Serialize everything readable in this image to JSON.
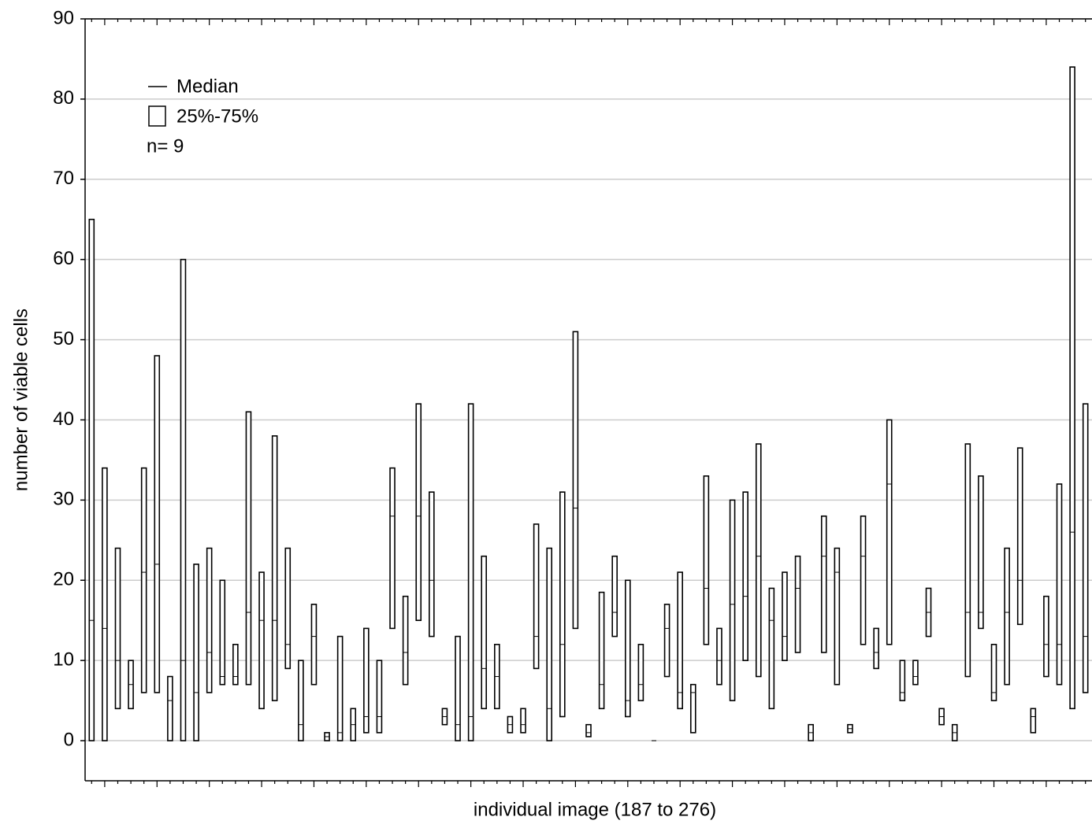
{
  "chart_data": {
    "type": "box",
    "y_label": "number of viable cells",
    "x_label": "individual image (187 to 276)",
    "legend": {
      "median": "Median",
      "box": "25%-75%",
      "n": "n= 9"
    },
    "categories": [
      null,
      null,
      null,
      null,
      null,
      null,
      null,
      null,
      null,
      null,
      null,
      null,
      null,
      null,
      null,
      null,
      null,
      null,
      null,
      null,
      null,
      null,
      null,
      null,
      null,
      null,
      null,
      null,
      null,
      null,
      null,
      null,
      null,
      null,
      null,
      null,
      null,
      null,
      null,
      null,
      null,
      null,
      null,
      null,
      null,
      null,
      null,
      null,
      null,
      null,
      null,
      null,
      null,
      null,
      null,
      null,
      null,
      null,
      null,
      null,
      null,
      null,
      null,
      null,
      null,
      null,
      null,
      null,
      null,
      null,
      null,
      null,
      null,
      null,
      null,
      null,
      null
    ],
    "q1": [
      0,
      0,
      4,
      4,
      6,
      6,
      0,
      0,
      0,
      6,
      7,
      7,
      7,
      4,
      5,
      9,
      0,
      7,
      0,
      0,
      0,
      1,
      1,
      14,
      7,
      15,
      13,
      2,
      0,
      0,
      4,
      4,
      1,
      1,
      9,
      0,
      3,
      14,
      0.5,
      4,
      13,
      3,
      5,
      0,
      8,
      4,
      1,
      12,
      7,
      5,
      10,
      8,
      4,
      10,
      11,
      0,
      11,
      7,
      1,
      12,
      9,
      12,
      5,
      7,
      13,
      2,
      0,
      8,
      14,
      5,
      7,
      14.5,
      1,
      8,
      7,
      4,
      6
    ],
    "median": [
      15,
      14,
      10,
      7,
      21,
      22,
      5,
      10,
      6,
      11,
      8,
      8,
      16,
      15,
      15,
      12,
      2,
      13,
      0.5,
      1,
      2,
      3,
      3,
      28,
      11,
      28,
      20,
      3,
      2,
      3,
      9,
      8,
      2,
      2,
      13,
      4,
      12,
      29,
      1,
      7,
      16,
      5,
      7,
      0,
      14,
      6,
      6,
      19,
      10,
      17,
      18,
      23,
      15,
      13,
      19,
      1,
      23,
      21,
      1.5,
      23,
      11,
      32,
      6,
      8,
      16,
      3,
      1,
      16,
      16,
      6,
      16,
      20,
      3,
      12,
      12,
      26,
      13
    ],
    "q3": [
      65,
      34,
      24,
      10,
      34,
      48,
      8,
      60,
      22,
      24,
      20,
      12,
      41,
      21,
      38,
      24,
      10,
      17,
      1,
      13,
      4,
      14,
      10,
      34,
      18,
      42,
      31,
      4,
      13,
      42,
      23,
      12,
      3,
      4,
      27,
      24,
      31,
      51,
      2,
      18.5,
      23,
      20,
      12,
      0,
      17,
      21,
      7,
      33,
      14,
      30,
      31,
      37,
      19,
      21,
      23,
      2,
      28,
      24,
      2,
      28,
      14,
      40,
      10,
      10,
      19,
      4,
      2,
      37,
      33,
      12,
      24,
      36.5,
      4,
      18,
      32,
      84,
      42
    ],
    "ylim": [
      -5,
      90
    ],
    "yticks": [
      0,
      10,
      20,
      30,
      40,
      50,
      60,
      70,
      80,
      90
    ],
    "grid": true,
    "color": "#000000",
    "grid_color": "#cccccc"
  }
}
